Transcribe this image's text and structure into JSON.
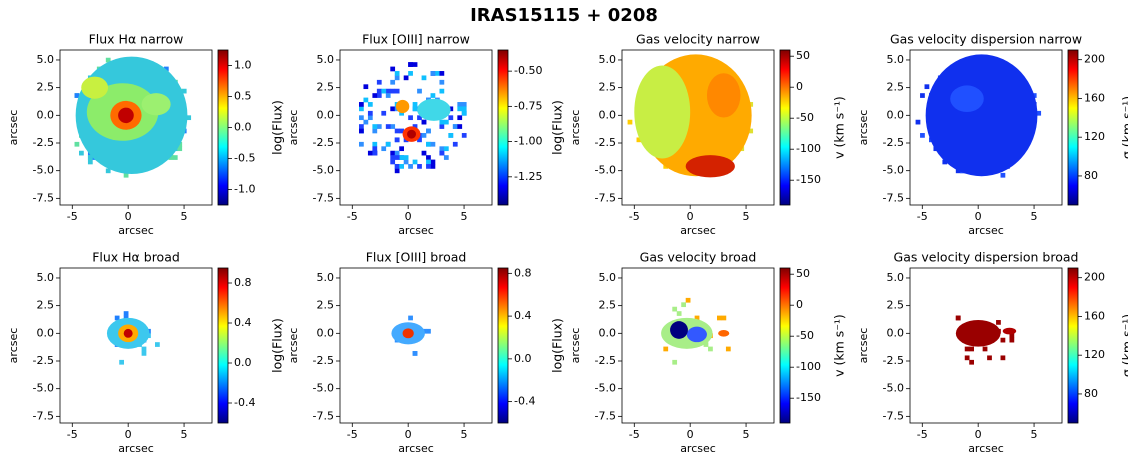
{
  "title": "IRAS15115 + 0208",
  "chart_data": [
    {
      "type": "heatmap",
      "title": "Flux Hα narrow",
      "xlabel": "arcsec",
      "ylabel": "arcsec",
      "xlim": [
        -6.1,
        7.5
      ],
      "ylim": [
        -8.1,
        5.9
      ],
      "xticks": [
        -5,
        0,
        5
      ],
      "yticks": [
        {
          "value": 5,
          "label": "5.0"
        },
        {
          "value": 2.5,
          "label": "2.5"
        },
        {
          "value": 0,
          "label": "0.0"
        },
        {
          "value": -2.5,
          "label": "-2.5"
        },
        {
          "value": -5,
          "label": "-5.0"
        },
        {
          "value": -7.5,
          "label": "-7.5"
        }
      ],
      "colorbar": {
        "label": "log(Flux)",
        "lim": [
          -1.25,
          1.25
        ],
        "ticks": [
          {
            "value": -1,
            "label": "-1.0"
          },
          {
            "value": -0.5,
            "label": "-0.5"
          },
          {
            "value": 0,
            "label": "0.0"
          },
          {
            "value": 0.5,
            "label": "0.5"
          },
          {
            "value": 1,
            "label": "1.0"
          }
        ]
      }
    },
    {
      "type": "heatmap",
      "title": "Flux [OIII] narrow",
      "xlabel": "arcsec",
      "ylabel": "arcsec",
      "xlim": [
        -6.1,
        7.5
      ],
      "ylim": [
        -8.1,
        5.9
      ],
      "xticks": [
        -5,
        0,
        5
      ],
      "yticks": [
        {
          "value": 5,
          "label": "5.0"
        },
        {
          "value": 2.5,
          "label": "2.5"
        },
        {
          "value": 0,
          "label": "0.0"
        },
        {
          "value": -2.5,
          "label": "-2.5"
        },
        {
          "value": -5,
          "label": "-5.0"
        },
        {
          "value": -7.5,
          "label": "-7.5"
        }
      ],
      "colorbar": {
        "label": "log(Flux)",
        "lim": [
          -1.45,
          -0.35
        ],
        "ticks": [
          {
            "value": -1.25,
            "label": "-1.25"
          },
          {
            "value": -1,
            "label": "-1.00"
          },
          {
            "value": -0.75,
            "label": "-0.75"
          },
          {
            "value": -0.5,
            "label": "-0.50"
          }
        ]
      }
    },
    {
      "type": "heatmap",
      "title": "Gas velocity narrow",
      "xlabel": "arcsec",
      "ylabel": "arcsec",
      "xlim": [
        -6.1,
        7.5
      ],
      "ylim": [
        -8.1,
        5.9
      ],
      "xticks": [
        -5,
        0,
        5
      ],
      "yticks": [
        {
          "value": 5,
          "label": "5.0"
        },
        {
          "value": 2.5,
          "label": "2.5"
        },
        {
          "value": 0,
          "label": "0.0"
        },
        {
          "value": -2.5,
          "label": "-2.5"
        },
        {
          "value": -5,
          "label": "-5.0"
        },
        {
          "value": -7.5,
          "label": "-7.5"
        }
      ],
      "colorbar": {
        "label": "v (km s⁻¹)",
        "lim": [
          -190,
          60
        ],
        "ticks": [
          -150,
          -100,
          -50,
          0,
          50
        ]
      }
    },
    {
      "type": "heatmap",
      "title": "Gas velocity dispersion narrow",
      "xlabel": "arcsec",
      "ylabel": "arcsec",
      "xlim": [
        -6.1,
        7.5
      ],
      "ylim": [
        -8.1,
        5.9
      ],
      "xticks": [
        -5,
        0,
        5
      ],
      "yticks": [
        {
          "value": 5,
          "label": "5.0"
        },
        {
          "value": 2.5,
          "label": "2.5"
        },
        {
          "value": 0,
          "label": "0.0"
        },
        {
          "value": -2.5,
          "label": "-2.5"
        },
        {
          "value": -5,
          "label": "-5.0"
        },
        {
          "value": -7.5,
          "label": "-7.5"
        }
      ],
      "colorbar": {
        "label": "σ (km s⁻¹)",
        "lim": [
          50,
          210
        ],
        "ticks": [
          80,
          120,
          160,
          200
        ]
      }
    },
    {
      "type": "heatmap",
      "title": "Flux Hα broad",
      "xlabel": "arcsec",
      "ylabel": "arcsec",
      "xlim": [
        -6.1,
        7.5
      ],
      "ylim": [
        -8.1,
        5.9
      ],
      "xticks": [
        -5,
        0,
        5
      ],
      "yticks": [
        {
          "value": 5,
          "label": "5.0"
        },
        {
          "value": 2.5,
          "label": "2.5"
        },
        {
          "value": 0,
          "label": "0.0"
        },
        {
          "value": -2.5,
          "label": "-2.5"
        },
        {
          "value": -5,
          "label": "-5.0"
        },
        {
          "value": -7.5,
          "label": "-7.5"
        }
      ],
      "colorbar": {
        "label": "log(Flux)",
        "lim": [
          -0.6,
          0.95
        ],
        "ticks": [
          -0.4,
          {
            "value": 0,
            "label": "0.0"
          },
          0.4,
          0.8
        ]
      }
    },
    {
      "type": "heatmap",
      "title": "Flux [OIII] broad",
      "xlabel": "arcsec",
      "ylabel": "arcsec",
      "xlim": [
        -6.1,
        7.5
      ],
      "ylim": [
        -8.1,
        5.9
      ],
      "xticks": [
        -5,
        0,
        5
      ],
      "yticks": [
        {
          "value": 5,
          "label": "5.0"
        },
        {
          "value": 2.5,
          "label": "2.5"
        },
        {
          "value": 0,
          "label": "0.0"
        },
        {
          "value": -2.5,
          "label": "-2.5"
        },
        {
          "value": -5,
          "label": "-5.0"
        },
        {
          "value": -7.5,
          "label": "-7.5"
        }
      ],
      "colorbar": {
        "label": "log(Flux)",
        "lim": [
          -0.6,
          0.85
        ],
        "ticks": [
          -0.4,
          {
            "value": 0,
            "label": "0.0"
          },
          0.4,
          0.8
        ]
      }
    },
    {
      "type": "heatmap",
      "title": "Gas velocity broad",
      "xlabel": "arcsec",
      "ylabel": "arcsec",
      "xlim": [
        -6.1,
        7.5
      ],
      "ylim": [
        -8.1,
        5.9
      ],
      "xticks": [
        -5,
        0,
        5
      ],
      "yticks": [
        {
          "value": 5,
          "label": "5.0"
        },
        {
          "value": 2.5,
          "label": "2.5"
        },
        {
          "value": 0,
          "label": "0.0"
        },
        {
          "value": -2.5,
          "label": "-2.5"
        },
        {
          "value": -5,
          "label": "-5.0"
        },
        {
          "value": -7.5,
          "label": "-7.5"
        }
      ],
      "colorbar": {
        "label": "v (km s⁻¹)",
        "lim": [
          -190,
          60
        ],
        "ticks": [
          -150,
          -100,
          -50,
          0,
          50
        ]
      }
    },
    {
      "type": "heatmap",
      "title": "Gas velocity dispersion broad",
      "xlabel": "arcsec",
      "ylabel": "arcsec",
      "xlim": [
        -6.1,
        7.5
      ],
      "ylim": [
        -8.1,
        5.9
      ],
      "xticks": [
        -5,
        0,
        5
      ],
      "yticks": [
        {
          "value": 5,
          "label": "5.0"
        },
        {
          "value": 2.5,
          "label": "2.5"
        },
        {
          "value": 0,
          "label": "0.0"
        },
        {
          "value": -2.5,
          "label": "-2.5"
        },
        {
          "value": -5,
          "label": "-5.0"
        },
        {
          "value": -7.5,
          "label": "-7.5"
        }
      ],
      "colorbar": {
        "label": "σ (km s⁻¹)",
        "lim": [
          50,
          210
        ],
        "ticks": [
          80,
          120,
          160,
          200
        ]
      }
    }
  ]
}
